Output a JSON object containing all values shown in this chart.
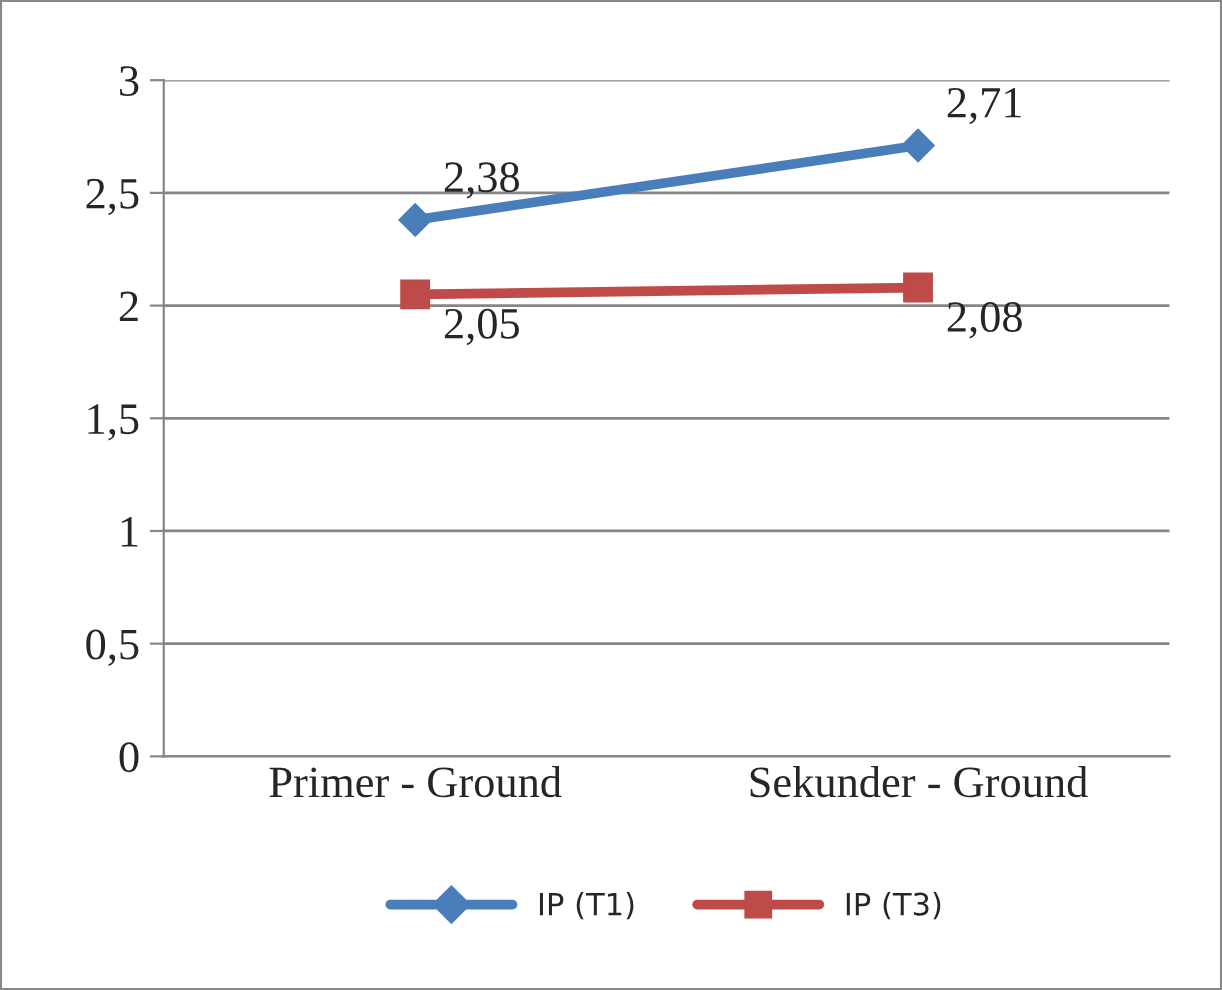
{
  "chart_data": {
    "type": "line",
    "categories": [
      "Primer - Ground",
      "Sekunder - Ground"
    ],
    "series": [
      {
        "name": "IP (T1)",
        "color": "#4a7ebb",
        "values": [
          2.38,
          2.71
        ],
        "marker": "diamond",
        "value_labels": [
          "2,38",
          "2,71"
        ]
      },
      {
        "name": "IP (T3)",
        "color": "#be4b48",
        "values": [
          2.05,
          2.08
        ],
        "marker": "square",
        "value_labels": [
          "2,05",
          "2,08"
        ]
      }
    ],
    "ylim": [
      0,
      3
    ],
    "yticks": [
      0,
      {
        "value": 0.5,
        "label": "0,5"
      },
      1,
      {
        "value": 1.5,
        "label": "1,5"
      },
      2,
      {
        "value": 2.5,
        "label": "2,5"
      },
      3
    ],
    "grid": "y",
    "legend": "bottom",
    "line_style": "solid"
  }
}
